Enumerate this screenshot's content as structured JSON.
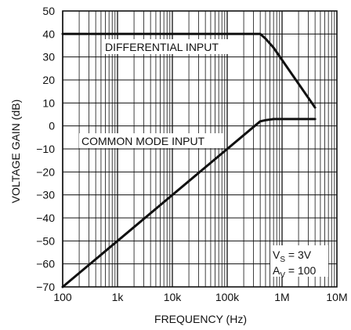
{
  "chart_data": {
    "type": "line",
    "title": "",
    "xlabel": "FREQUENCY (Hz)",
    "ylabel": "VOLTAGE GAIN (dB)",
    "x_scale": "log",
    "xlim": [
      100,
      10000000
    ],
    "ylim": [
      -70,
      50
    ],
    "grid": true,
    "x_ticks": [
      100,
      1000,
      10000,
      100000,
      1000000,
      10000000
    ],
    "x_tick_labels": [
      "100",
      "1k",
      "10k",
      "100k",
      "1M",
      "10M"
    ],
    "y_ticks": [
      -70,
      -60,
      -50,
      -40,
      -30,
      -20,
      -10,
      0,
      10,
      20,
      30,
      40,
      50
    ],
    "y_tick_labels": [
      "−70",
      "−60",
      "−50",
      "−40",
      "−30",
      "−20",
      "−10",
      "0",
      "10",
      "20",
      "30",
      "40",
      "50"
    ],
    "series": [
      {
        "name": "DIFFERENTIAL INPUT",
        "x": [
          100,
          300000,
          400000,
          500000,
          700000,
          4000000
        ],
        "y": [
          40,
          40,
          40,
          38,
          34,
          8
        ]
      },
      {
        "name": "COMMON MODE INPUT",
        "x": [
          100,
          400000,
          500000,
          700000,
          4000000
        ],
        "y": [
          -70,
          2,
          2.5,
          3,
          3
        ]
      }
    ],
    "annotations": {
      "vs_main": "V",
      "vs_sub": "S",
      "vs_rest": " = 3V",
      "av_main": "A",
      "av_sub": "V",
      "av_rest": " = 100"
    }
  }
}
